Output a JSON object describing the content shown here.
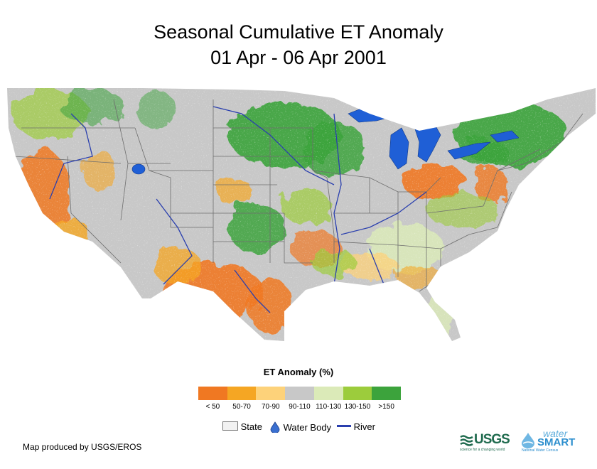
{
  "title": {
    "line1": "Seasonal Cumulative ET Anomaly",
    "line2": "01 Apr - 06 Apr 2001"
  },
  "legend": {
    "title": "ET Anomaly (%)",
    "classes": [
      {
        "label": "< 50",
        "color": "#f07822"
      },
      {
        "label": "50-70",
        "color": "#f5a623"
      },
      {
        "label": "70-90",
        "color": "#fdd27a"
      },
      {
        "label": "90-110",
        "color": "#c8c8c8"
      },
      {
        "label": "110-130",
        "color": "#dbeab8"
      },
      {
        "label": "130-150",
        "color": "#9ccc3c"
      },
      {
        "label": ">150",
        "color": "#3ca33c"
      }
    ]
  },
  "features": {
    "state": "State",
    "water_body": "Water Body",
    "river": "River",
    "water_color": "#1f5fd6",
    "river_color": "#2a3fae"
  },
  "credit": "Map produced by USGS/EROS",
  "logos": {
    "usgs": "USGS",
    "usgs_tagline": "science for a changing world",
    "watersmart_top": "water",
    "watersmart_main": "SMART",
    "watersmart_sub": "National Water Census"
  }
}
